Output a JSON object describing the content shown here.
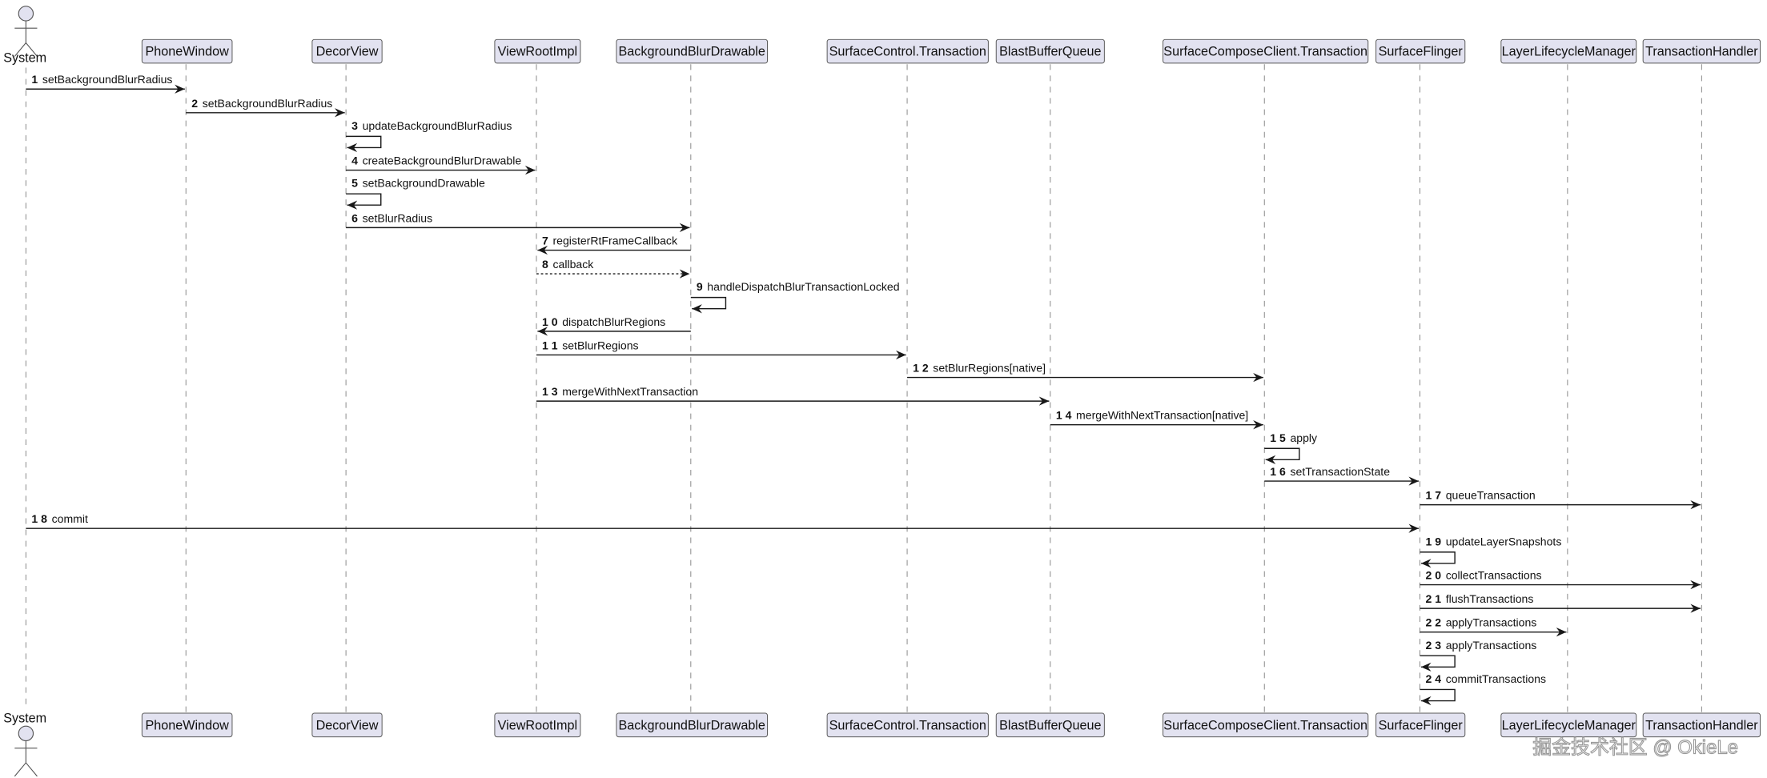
{
  "actor": {
    "name": "System"
  },
  "participants": [
    {
      "name": "PhoneWindow"
    },
    {
      "name": "DecorView"
    },
    {
      "name": "ViewRootImpl"
    },
    {
      "name": "BackgroundBlurDrawable"
    },
    {
      "name": "SurfaceControl.Transaction"
    },
    {
      "name": "BlastBufferQueue"
    },
    {
      "name": "SurfaceComposeClient.Transaction"
    },
    {
      "name": "SurfaceFlinger"
    },
    {
      "name": "LayerLifecycleManager"
    },
    {
      "name": "TransactionHandler"
    }
  ],
  "messages": [
    {
      "num": "1",
      "label": "setBackgroundBlurRadius",
      "from": "System",
      "to": "PhoneWindow",
      "style": "solid"
    },
    {
      "num": "2",
      "label": "setBackgroundBlurRadius",
      "from": "PhoneWindow",
      "to": "DecorView",
      "style": "solid"
    },
    {
      "num": "3",
      "label": "updateBackgroundBlurRadius",
      "from": "DecorView",
      "to": "DecorView",
      "style": "solid"
    },
    {
      "num": "4",
      "label": "createBackgroundBlurDrawable",
      "from": "DecorView",
      "to": "ViewRootImpl",
      "style": "solid"
    },
    {
      "num": "5",
      "label": "setBackgroundDrawable",
      "from": "DecorView",
      "to": "DecorView",
      "style": "solid"
    },
    {
      "num": "6",
      "label": "setBlurRadius",
      "from": "DecorView",
      "to": "BackgroundBlurDrawable",
      "style": "solid"
    },
    {
      "num": "7",
      "label": "registerRtFrameCallback",
      "from": "BackgroundBlurDrawable",
      "to": "ViewRootImpl",
      "style": "solid"
    },
    {
      "num": "8",
      "label": "callback",
      "from": "ViewRootImpl",
      "to": "BackgroundBlurDrawable",
      "style": "dashed"
    },
    {
      "num": "9",
      "label": "handleDispatchBlurTransactionLocked",
      "from": "BackgroundBlurDrawable",
      "to": "BackgroundBlurDrawable",
      "style": "solid"
    },
    {
      "num": "1 0",
      "label": "dispatchBlurRegions",
      "from": "BackgroundBlurDrawable",
      "to": "ViewRootImpl",
      "style": "solid"
    },
    {
      "num": "1 1",
      "label": "setBlurRegions",
      "from": "ViewRootImpl",
      "to": "SurfaceControl.Transaction",
      "style": "solid"
    },
    {
      "num": "1 2",
      "label": "setBlurRegions[native]",
      "from": "SurfaceControl.Transaction",
      "to": "SurfaceComposeClient.Transaction",
      "style": "solid"
    },
    {
      "num": "1 3",
      "label": "mergeWithNextTransaction",
      "from": "ViewRootImpl",
      "to": "BlastBufferQueue",
      "style": "solid"
    },
    {
      "num": "1 4",
      "label": "mergeWithNextTransaction[native]",
      "from": "BlastBufferQueue",
      "to": "SurfaceComposeClient.Transaction",
      "style": "solid"
    },
    {
      "num": "1 5",
      "label": "apply",
      "from": "SurfaceComposeClient.Transaction",
      "to": "SurfaceComposeClient.Transaction",
      "style": "solid"
    },
    {
      "num": "1 6",
      "label": "setTransactionState",
      "from": "SurfaceComposeClient.Transaction",
      "to": "SurfaceFlinger",
      "style": "solid"
    },
    {
      "num": "1 7",
      "label": "queueTransaction",
      "from": "SurfaceFlinger",
      "to": "TransactionHandler",
      "style": "solid"
    },
    {
      "num": "1 8",
      "label": "commit",
      "from": "System",
      "to": "SurfaceFlinger",
      "style": "solid"
    },
    {
      "num": "1 9",
      "label": "updateLayerSnapshots",
      "from": "SurfaceFlinger",
      "to": "SurfaceFlinger",
      "style": "solid"
    },
    {
      "num": "2 0",
      "label": "collectTransactions",
      "from": "SurfaceFlinger",
      "to": "TransactionHandler",
      "style": "solid"
    },
    {
      "num": "2 1",
      "label": "flushTransactions",
      "from": "SurfaceFlinger",
      "to": "TransactionHandler",
      "style": "solid"
    },
    {
      "num": "2 2",
      "label": "applyTransactions",
      "from": "SurfaceFlinger",
      "to": "LayerLifecycleManager",
      "style": "solid"
    },
    {
      "num": "2 3",
      "label": "applyTransactions",
      "from": "SurfaceFlinger",
      "to": "SurfaceFlinger",
      "style": "solid"
    },
    {
      "num": "2 4",
      "label": "commitTransactions",
      "from": "SurfaceFlinger",
      "to": "SurfaceFlinger",
      "style": "solid"
    }
  ],
  "watermark": "掘金技术社区 @ OkieLe",
  "colors": {
    "participant_fill": "#e2e2f0",
    "line": "#181818"
  }
}
